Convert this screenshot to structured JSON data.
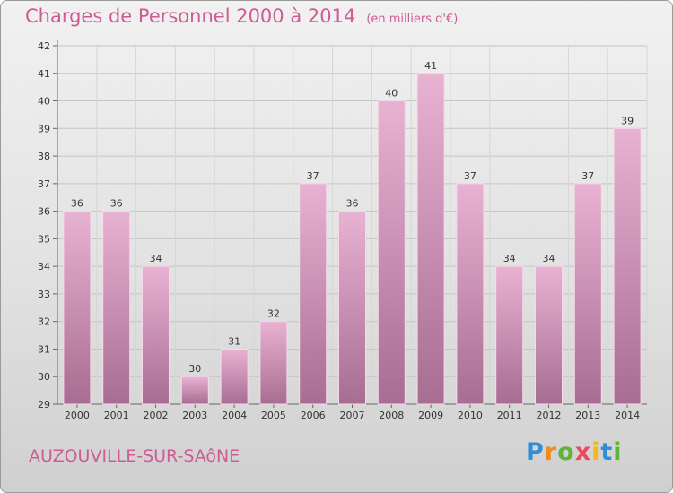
{
  "header": {
    "title": "Charges de Personnel 2000 à 2014",
    "subtitle": "(en milliers d'€)"
  },
  "footer": {
    "town": "AUZOUVILLE-SUR-SAôNE",
    "logo": "Proxiti"
  },
  "colors": {
    "accent": "#d05a94",
    "bar_top": "#e8b2d2",
    "bar_bottom": "#a86d92"
  },
  "chart_data": {
    "type": "bar",
    "title": "Charges de Personnel 2000 à 2014",
    "subtitle": "(en milliers d'€)",
    "categories": [
      "2000",
      "2001",
      "2002",
      "2003",
      "2004",
      "2005",
      "2006",
      "2007",
      "2008",
      "2009",
      "2010",
      "2011",
      "2012",
      "2013",
      "2014"
    ],
    "values": [
      36,
      36,
      34,
      30,
      31,
      32,
      37,
      36,
      40,
      41,
      37,
      34,
      34,
      37,
      39
    ],
    "yticks": [
      29,
      30,
      31,
      32,
      33,
      34,
      35,
      36,
      37,
      38,
      39,
      40,
      41,
      42
    ],
    "ylim": [
      29,
      42
    ],
    "xlabel": "",
    "ylabel": "",
    "grid": true
  }
}
